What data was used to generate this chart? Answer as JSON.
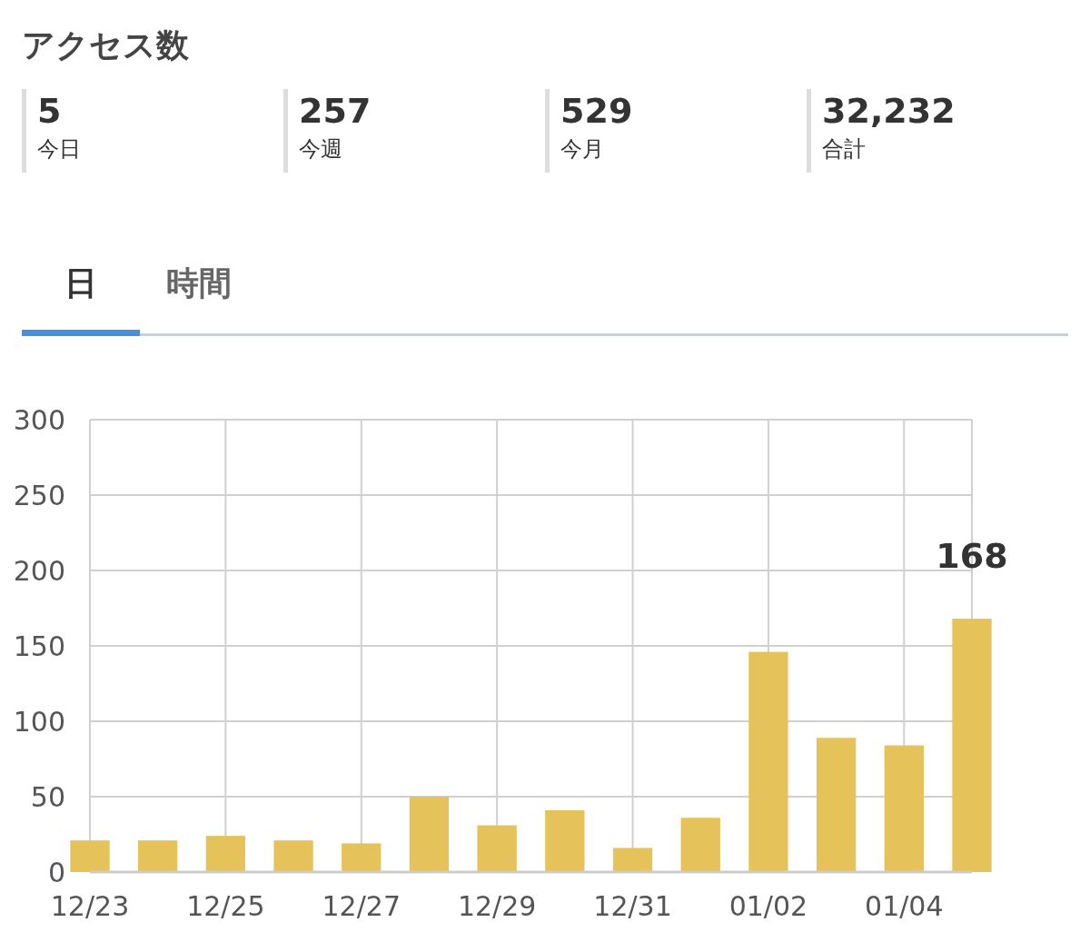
{
  "chart_data": [
    {
      "type": "other",
      "title": "アクセス数",
      "annotations": [
        "5",
        "今日",
        "257",
        "今週",
        "529",
        "今月",
        "32,232",
        "合計",
        "日",
        "時間"
      ]
    },
    {
      "type": "bar",
      "categories": [
        "12/23",
        null,
        "12/25",
        null,
        "12/27",
        null,
        "12/29",
        null,
        "12/31",
        null,
        "01/02",
        null,
        "01/04",
        null
      ],
      "values": [
        21,
        21,
        24,
        21,
        19,
        50,
        31,
        41,
        16,
        36,
        146,
        89,
        84,
        168
      ],
      "value_labels": [
        null,
        null,
        null,
        null,
        null,
        null,
        null,
        null,
        null,
        null,
        null,
        null,
        null,
        "168"
      ],
      "color": "#e5c35a",
      "ylim": [
        0,
        300
      ],
      "yticks": [
        0,
        50,
        100,
        150,
        200,
        250,
        300
      ],
      "grid": true
    }
  ]
}
